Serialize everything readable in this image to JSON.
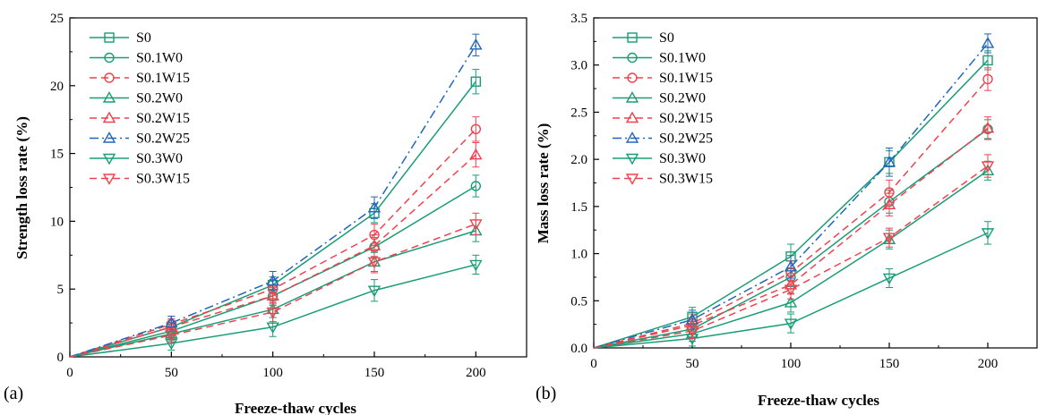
{
  "colors": {
    "green": "#1a9d76",
    "red": "#f0424e",
    "blue": "#2166b8"
  },
  "chart_data": [
    {
      "type": "line",
      "panel_label": "(a)",
      "xlabel": "Freeze-thaw cycles",
      "ylabel": "Strength loss rate (%)",
      "xlim": [
        0,
        225
      ],
      "ylim": [
        0,
        25
      ],
      "xticks": [
        "0",
        "50",
        "100",
        "150",
        "200"
      ],
      "yticks": [
        "0",
        "5",
        "10",
        "15",
        "20",
        "25"
      ],
      "legend_position": "top-left",
      "x": [
        0,
        50,
        100,
        150,
        200
      ],
      "series": [
        {
          "name": "S0",
          "color": "green",
          "dash": "solid",
          "marker": "square",
          "values": [
            0,
            2.2,
            5.3,
            10.6,
            20.3
          ],
          "err": [
            0,
            0.5,
            0.6,
            0.7,
            0.9
          ]
        },
        {
          "name": "S0.1W0",
          "color": "green",
          "dash": "solid",
          "marker": "circle",
          "values": [
            0,
            1.9,
            4.5,
            8.1,
            12.6
          ],
          "err": [
            0,
            0.5,
            0.6,
            0.7,
            0.8
          ]
        },
        {
          "name": "S0.1W15",
          "color": "red",
          "dash": "dashed",
          "marker": "circle",
          "values": [
            0,
            2.4,
            5.0,
            9.0,
            16.8
          ],
          "err": [
            0,
            0.6,
            0.7,
            0.8,
            0.9
          ]
        },
        {
          "name": "S0.2W0",
          "color": "green",
          "dash": "solid",
          "marker": "triangle-up",
          "values": [
            0,
            1.7,
            3.5,
            7.0,
            9.3
          ],
          "err": [
            0,
            0.5,
            0.6,
            0.7,
            0.8
          ]
        },
        {
          "name": "S0.2W15",
          "color": "red",
          "dash": "dashed",
          "marker": "triangle-up",
          "values": [
            0,
            2.2,
            4.5,
            8.2,
            14.9
          ],
          "err": [
            0,
            0.6,
            0.7,
            0.8,
            0.9
          ]
        },
        {
          "name": "S0.2W25",
          "color": "blue",
          "dash": "dashdot",
          "marker": "triangle-up",
          "values": [
            0,
            2.5,
            5.6,
            11.0,
            23.0
          ],
          "err": [
            0,
            0.5,
            0.7,
            0.8,
            0.8
          ]
        },
        {
          "name": "S0.3W0",
          "color": "green",
          "dash": "solid",
          "marker": "triangle-down",
          "values": [
            0,
            1.0,
            2.2,
            4.9,
            6.8
          ],
          "err": [
            0,
            0.5,
            0.7,
            0.8,
            0.7
          ]
        },
        {
          "name": "S0.3W15",
          "color": "red",
          "dash": "dashed",
          "marker": "triangle-down",
          "values": [
            0,
            1.6,
            3.3,
            7.0,
            9.8
          ],
          "err": [
            0,
            0.5,
            0.7,
            0.8,
            0.8
          ]
        }
      ]
    },
    {
      "type": "line",
      "panel_label": "(b)",
      "xlabel": "Freeze-thaw cycles",
      "ylabel": "Mass loss rate (%)",
      "xlim": [
        0,
        225
      ],
      "ylim": [
        0,
        3.5
      ],
      "xticks": [
        "0",
        "50",
        "100",
        "150",
        "200"
      ],
      "yticks": [
        "0.0",
        "0.5",
        "1.0",
        "1.5",
        "2.0",
        "2.5",
        "3.0",
        "3.5"
      ],
      "legend_position": "top-left",
      "x": [
        0,
        50,
        100,
        150,
        200
      ],
      "series": [
        {
          "name": "S0",
          "color": "green",
          "dash": "solid",
          "marker": "square",
          "values": [
            0,
            0.33,
            0.97,
            1.97,
            3.05
          ],
          "err": [
            0,
            0.1,
            0.13,
            0.12,
            0.1
          ]
        },
        {
          "name": "S0.1W0",
          "color": "green",
          "dash": "solid",
          "marker": "circle",
          "values": [
            0,
            0.2,
            0.75,
            1.55,
            2.32
          ],
          "err": [
            0,
            0.08,
            0.1,
            0.12,
            0.1
          ]
        },
        {
          "name": "S0.1W15",
          "color": "red",
          "dash": "dashed",
          "marker": "circle",
          "values": [
            0,
            0.26,
            0.8,
            1.65,
            2.85
          ],
          "err": [
            0,
            0.1,
            0.12,
            0.13,
            0.12
          ]
        },
        {
          "name": "S0.2W0",
          "color": "green",
          "dash": "solid",
          "marker": "triangle-up",
          "values": [
            0,
            0.15,
            0.48,
            1.15,
            1.88
          ],
          "err": [
            0,
            0.08,
            0.1,
            0.1,
            0.1
          ]
        },
        {
          "name": "S0.2W15",
          "color": "red",
          "dash": "dashed",
          "marker": "triangle-up",
          "values": [
            0,
            0.24,
            0.67,
            1.52,
            2.33
          ],
          "err": [
            0,
            0.08,
            0.1,
            0.12,
            0.12
          ]
        },
        {
          "name": "S0.2W25",
          "color": "blue",
          "dash": "dashdot",
          "marker": "triangle-up",
          "values": [
            0,
            0.3,
            0.86,
            1.97,
            3.23
          ],
          "err": [
            0,
            0.1,
            0.12,
            0.15,
            0.1
          ]
        },
        {
          "name": "S0.3W0",
          "color": "green",
          "dash": "solid",
          "marker": "triangle-down",
          "values": [
            0,
            0.1,
            0.26,
            0.74,
            1.22
          ],
          "err": [
            0,
            0.08,
            0.1,
            0.1,
            0.12
          ]
        },
        {
          "name": "S0.3W15",
          "color": "red",
          "dash": "dashed",
          "marker": "triangle-down",
          "values": [
            0,
            0.18,
            0.62,
            1.17,
            1.93
          ],
          "err": [
            0,
            0.08,
            0.1,
            0.1,
            0.12
          ]
        }
      ]
    }
  ]
}
